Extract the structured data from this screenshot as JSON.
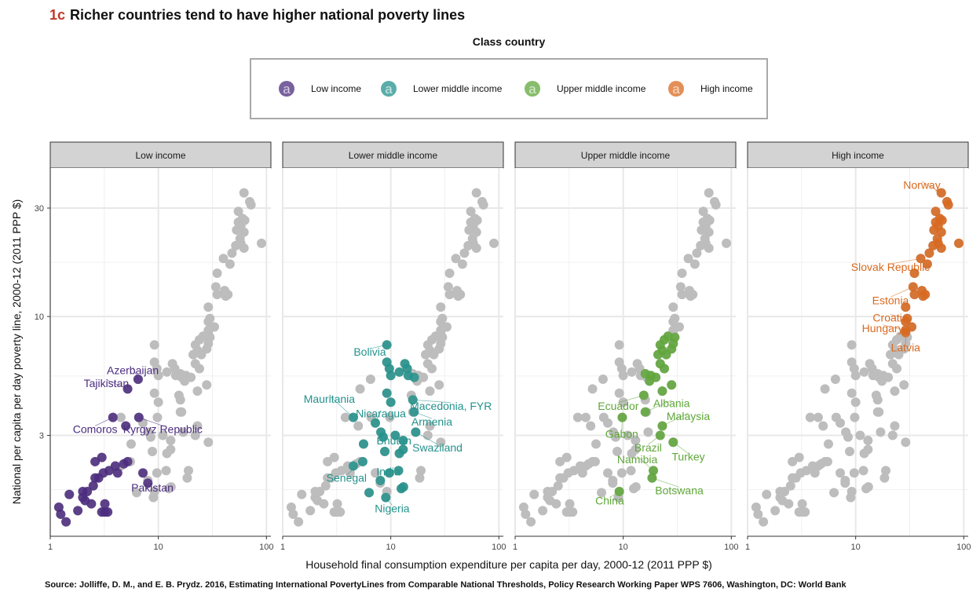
{
  "figure_label": "1c",
  "title": "Richer countries tend to have higher national poverty lines",
  "source": "Source: Jolliffe, D. M., and E. B. Prydz. 2016, Estimating International PovertyLines from Comparable National Thresholds, Policy Research Working Paper WPS 7606, Washington, DC: World Bank",
  "colors": {
    "low": "#4b2c7f",
    "lower_middle": "#23928c",
    "upper_middle": "#5fa73a",
    "high": "#d9691e",
    "background_points": "#bdbdbd",
    "strip": "#d3d3d3",
    "grid": "#e8e8e8"
  },
  "chart_data": {
    "type": "scatter",
    "xlabel": "Household final consumption expenditure per capita per day, 2000-12 (2011 PPP $)",
    "ylabel": "National per capita per day poverty line, 2000-12 (2011 PPP $)",
    "x_scale": "log",
    "y_scale": "log",
    "xlim": [
      1,
      110
    ],
    "ylim": [
      1.08,
      45
    ],
    "x_ticks": [
      1,
      10,
      100
    ],
    "x_tick_labels": [
      "1",
      "10",
      "100"
    ],
    "y_ticks": [
      3,
      10,
      30
    ],
    "y_tick_labels": [
      "3",
      "10",
      "30"
    ],
    "grid": true,
    "legend": {
      "title": "Class country",
      "position": "top",
      "glyph": "a",
      "entries": [
        "Low income",
        "Lower middle income",
        "Upper middle income",
        "High income"
      ]
    },
    "facets": [
      "Low income",
      "Lower middle income",
      "Upper middle income",
      "High income"
    ],
    "groups": [
      {
        "name": "Low income",
        "color_key": "low",
        "points": [
          [
            1.2,
            1.45
          ],
          [
            1.25,
            1.35
          ],
          [
            1.4,
            1.25
          ],
          [
            1.5,
            1.65
          ],
          [
            1.8,
            1.4
          ],
          [
            2.0,
            1.6
          ],
          [
            2.0,
            1.7
          ],
          [
            2.1,
            1.55
          ],
          [
            2.2,
            1.7
          ],
          [
            2.4,
            1.5
          ],
          [
            2.5,
            1.8
          ],
          [
            2.6,
            1.95
          ],
          [
            2.6,
            2.3
          ],
          [
            2.8,
            1.95
          ],
          [
            3.0,
            2.4
          ],
          [
            3.0,
            1.38
          ],
          [
            3.1,
            2.05
          ],
          [
            3.2,
            1.5
          ],
          [
            3.4,
            1.38
          ],
          [
            3.2,
            1.38
          ],
          [
            3.5,
            2.1
          ],
          [
            4.0,
            2.2
          ],
          [
            4.2,
            2.05
          ],
          [
            4.8,
            2.25
          ],
          [
            5.2,
            2.3
          ],
          [
            3.8,
            3.6
          ],
          [
            5.0,
            3.3
          ],
          [
            6.6,
            3.6
          ],
          [
            5.2,
            4.8
          ],
          [
            6.5,
            5.3
          ],
          [
            7.2,
            2.05
          ],
          [
            8.0,
            1.85
          ]
        ],
        "labels": [
          {
            "text": "Azerbaijan",
            "x": 6.5,
            "y": 5.3,
            "tx": 5.8,
            "ty": 5.8
          },
          {
            "text": "Tajikistan",
            "x": 5.2,
            "y": 4.8,
            "tx": 3.3,
            "ty": 5.1
          },
          {
            "text": "Comoros",
            "x": 3.8,
            "y": 3.6,
            "tx": 2.6,
            "ty": 3.2
          },
          {
            "text": "Kyrgyz Republic",
            "x": 6.6,
            "y": 3.6,
            "tx": 11.0,
            "ty": 3.2
          },
          {
            "text": "Pakistan",
            "x": 8.0,
            "y": 1.85,
            "tx": 8.8,
            "ty": 1.77
          }
        ]
      },
      {
        "name": "Lower middle income",
        "color_key": "lower_middle",
        "points": [
          [
            9.2,
            7.5
          ],
          [
            9.2,
            6.3
          ],
          [
            9.7,
            5.9
          ],
          [
            10.0,
            5.5
          ],
          [
            9.2,
            4.6
          ],
          [
            10.0,
            4.2
          ],
          [
            12.0,
            5.7
          ],
          [
            13.5,
            6.2
          ],
          [
            14.2,
            5.9
          ],
          [
            14.5,
            5.5
          ],
          [
            16.5,
            5.4
          ],
          [
            16.0,
            4.3
          ],
          [
            16.4,
            3.8
          ],
          [
            4.5,
            3.6
          ],
          [
            7.2,
            3.4
          ],
          [
            8.1,
            3.1
          ],
          [
            8.5,
            2.95
          ],
          [
            11.0,
            3.0
          ],
          [
            13.0,
            2.85
          ],
          [
            17.0,
            3.1
          ],
          [
            5.6,
            2.75
          ],
          [
            8.8,
            2.55
          ],
          [
            12.0,
            2.5
          ],
          [
            13.0,
            2.6
          ],
          [
            5.5,
            2.3
          ],
          [
            4.5,
            2.2
          ],
          [
            11.8,
            2.1
          ],
          [
            8.0,
            1.9
          ],
          [
            9.7,
            2.05
          ],
          [
            12.5,
            1.75
          ],
          [
            13.1,
            1.78
          ],
          [
            6.3,
            1.68
          ],
          [
            9.0,
            1.6
          ]
        ],
        "labels": [
          {
            "text": "Bolivia",
            "x": 9.2,
            "y": 7.5,
            "tx": 6.4,
            "ty": 7.0
          },
          {
            "text": "Mauritania",
            "x": 4.5,
            "y": 3.6,
            "tx": 2.7,
            "ty": 4.35
          },
          {
            "text": "Nicaragua",
            "x": 7.2,
            "y": 3.4,
            "tx": 8.1,
            "ty": 3.75
          },
          {
            "text": "Macedonia, FYR",
            "x": 16.0,
            "y": 4.3,
            "tx": 36.0,
            "ty": 4.05
          },
          {
            "text": "Armenia",
            "x": 16.4,
            "y": 3.8,
            "tx": 24.0,
            "ty": 3.45
          },
          {
            "text": "Bhutan",
            "x": 11.0,
            "y": 3.0,
            "tx": 10.7,
            "ty": 2.85
          },
          {
            "text": "Swaziland",
            "x": 17.0,
            "y": 3.1,
            "tx": 27.0,
            "ty": 2.65
          },
          {
            "text": "India",
            "x": 9.7,
            "y": 2.05,
            "tx": 9.5,
            "ty": 2.08
          },
          {
            "text": "Senegal",
            "x": 5.5,
            "y": 2.3,
            "tx": 3.9,
            "ty": 1.95
          },
          {
            "text": "Nigeria",
            "x": 9.0,
            "y": 1.6,
            "tx": 10.3,
            "ty": 1.43
          }
        ]
      },
      {
        "name": "Upper middle income",
        "color_key": "upper_middle",
        "points": [
          [
            26.0,
            8.2
          ],
          [
            24.0,
            7.9
          ],
          [
            30.0,
            8.1
          ],
          [
            29.0,
            7.6
          ],
          [
            22.0,
            7.5
          ],
          [
            23.0,
            7.1
          ],
          [
            28.0,
            7.2
          ],
          [
            25.0,
            6.8
          ],
          [
            22.0,
            6.2
          ],
          [
            21.0,
            6.8
          ],
          [
            24.0,
            5.9
          ],
          [
            16.0,
            5.6
          ],
          [
            18.0,
            5.5
          ],
          [
            20.0,
            5.4
          ],
          [
            17.5,
            5.2
          ],
          [
            28.0,
            5.0
          ],
          [
            23.0,
            4.7
          ],
          [
            15.5,
            4.5
          ],
          [
            16.0,
            3.8
          ],
          [
            9.8,
            3.6
          ],
          [
            23.0,
            3.3
          ],
          [
            22.0,
            3.0
          ],
          [
            29.0,
            2.8
          ],
          [
            19.0,
            2.1
          ],
          [
            18.5,
            1.95
          ],
          [
            9.2,
            1.7
          ]
        ],
        "labels": [
          {
            "text": "Ecuador",
            "x": 15.5,
            "y": 4.5,
            "tx": 9.0,
            "ty": 4.05
          },
          {
            "text": "Albania",
            "x": 16.0,
            "y": 3.8,
            "tx": 28.0,
            "ty": 4.15
          },
          {
            "text": "Malaysia",
            "x": 23.0,
            "y": 3.3,
            "tx": 40.0,
            "ty": 3.65
          },
          {
            "text": "Gabon",
            "x": 9.8,
            "y": 3.6,
            "tx": 9.7,
            "ty": 3.05
          },
          {
            "text": "Brazil",
            "x": 22.0,
            "y": 3.0,
            "tx": 17.0,
            "ty": 2.65
          },
          {
            "text": "Turkey",
            "x": 29.0,
            "y": 2.8,
            "tx": 40.0,
            "ty": 2.42
          },
          {
            "text": "Namibia",
            "x": 19.0,
            "y": 2.1,
            "tx": 13.5,
            "ty": 2.35
          },
          {
            "text": "Botswana",
            "x": 18.5,
            "y": 1.95,
            "tx": 33.0,
            "ty": 1.72
          },
          {
            "text": "China",
            "x": 9.2,
            "y": 1.7,
            "tx": 7.5,
            "ty": 1.55
          }
        ]
      },
      {
        "name": "High income",
        "color_key": "high",
        "points": [
          [
            62.0,
            35.0
          ],
          [
            70.0,
            32.0
          ],
          [
            72.0,
            31.0
          ],
          [
            55.0,
            29.0
          ],
          [
            55.0,
            26.0
          ],
          [
            60.0,
            27.0
          ],
          [
            63.0,
            26.5
          ],
          [
            58.0,
            25.0
          ],
          [
            53.0,
            24.0
          ],
          [
            62.0,
            23.5
          ],
          [
            57.0,
            22.0
          ],
          [
            58.0,
            21.0
          ],
          [
            52.0,
            20.5
          ],
          [
            62.0,
            20.0
          ],
          [
            90.0,
            21.0
          ],
          [
            48.0,
            19.0
          ],
          [
            40.0,
            18.0
          ],
          [
            46.0,
            17.0
          ],
          [
            35.0,
            15.5
          ],
          [
            34.0,
            13.5
          ],
          [
            41.0,
            13.0
          ],
          [
            44.0,
            12.5
          ],
          [
            42.0,
            12.3
          ],
          [
            35.0,
            12.5
          ],
          [
            29.0,
            11.0
          ],
          [
            30.0,
            9.8
          ],
          [
            29.0,
            9.5
          ],
          [
            33.0,
            9.0
          ],
          [
            29.0,
            8.7
          ],
          [
            29.0,
            8.5
          ]
        ],
        "labels": [
          {
            "text": "Norway",
            "x": 62.0,
            "y": 35.0,
            "tx": 41.0,
            "ty": 38.0
          },
          {
            "text": "Slovak Republic",
            "x": 40.0,
            "y": 18.0,
            "tx": 21.0,
            "ty": 16.5
          },
          {
            "text": "Estonia",
            "x": 34.0,
            "y": 13.5,
            "tx": 21.0,
            "ty": 11.8
          },
          {
            "text": "Croatia",
            "x": 30.0,
            "y": 9.8,
            "tx": 21.0,
            "ty": 9.9
          },
          {
            "text": "Hungary",
            "x": 29.0,
            "y": 8.7,
            "tx": 17.8,
            "ty": 8.9
          },
          {
            "text": "Latvia",
            "x": 29.0,
            "y": 8.5,
            "tx": 29.0,
            "ty": 7.3
          }
        ]
      }
    ]
  }
}
